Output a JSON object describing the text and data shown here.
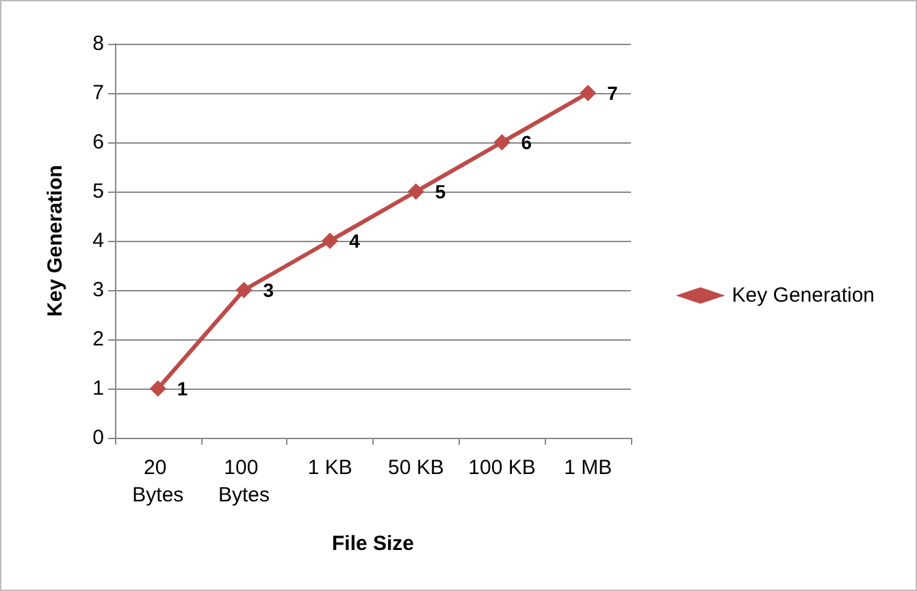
{
  "chart_data": {
    "type": "line",
    "xlabel": "File Size",
    "ylabel": "Key Generation",
    "categories": [
      "20 Bytes",
      "100 Bytes",
      "1 KB",
      "50 KB",
      "100 KB",
      "1 MB"
    ],
    "series": [
      {
        "name": "Key Generation",
        "color": "#be4b48",
        "values": [
          1,
          3,
          4,
          5,
          6,
          7
        ]
      }
    ],
    "ylim": [
      0,
      8
    ],
    "yticks": [
      0,
      1,
      2,
      3,
      4,
      5,
      6,
      7,
      8
    ],
    "grid": "y",
    "legend": "right",
    "marker": "diamond",
    "line_style": "solid",
    "data_labels": true
  }
}
